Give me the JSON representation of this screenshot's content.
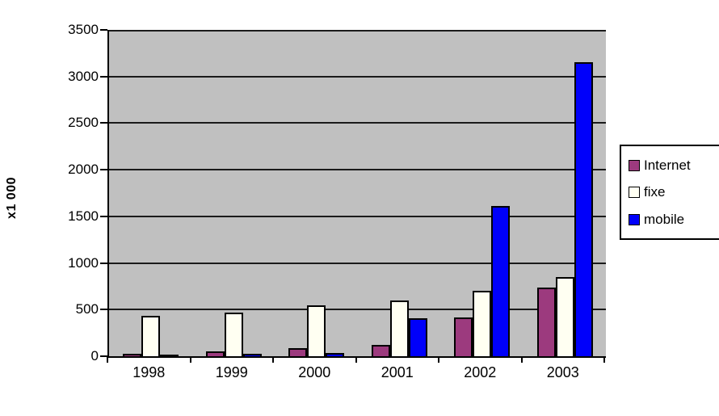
{
  "chart_data": {
    "type": "bar",
    "title": "",
    "xlabel": "",
    "ylabel": "x1 000",
    "ylim": [
      0,
      3500
    ],
    "ytick_step": 500,
    "yticks": [
      "0",
      "500",
      "1000",
      "1500",
      "2000",
      "2500",
      "3000",
      "3500"
    ],
    "categories": [
      "1998",
      "1999",
      "2000",
      "2001",
      "2002",
      "2003"
    ],
    "series": [
      {
        "name": "Internet",
        "color": "#9c3a7e",
        "values": [
          30,
          50,
          85,
          120,
          420,
          740
        ]
      },
      {
        "name": "fixe",
        "color": "#fffff2",
        "values": [
          430,
          470,
          550,
          600,
          700,
          850
        ]
      },
      {
        "name": "mobile",
        "color": "#0000fa",
        "values": [
          15,
          30,
          35,
          410,
          1610,
          3150
        ]
      }
    ],
    "legend_position": "right",
    "grid": true,
    "plot_background": "#c0c0c0",
    "axis_color": "#000000"
  }
}
